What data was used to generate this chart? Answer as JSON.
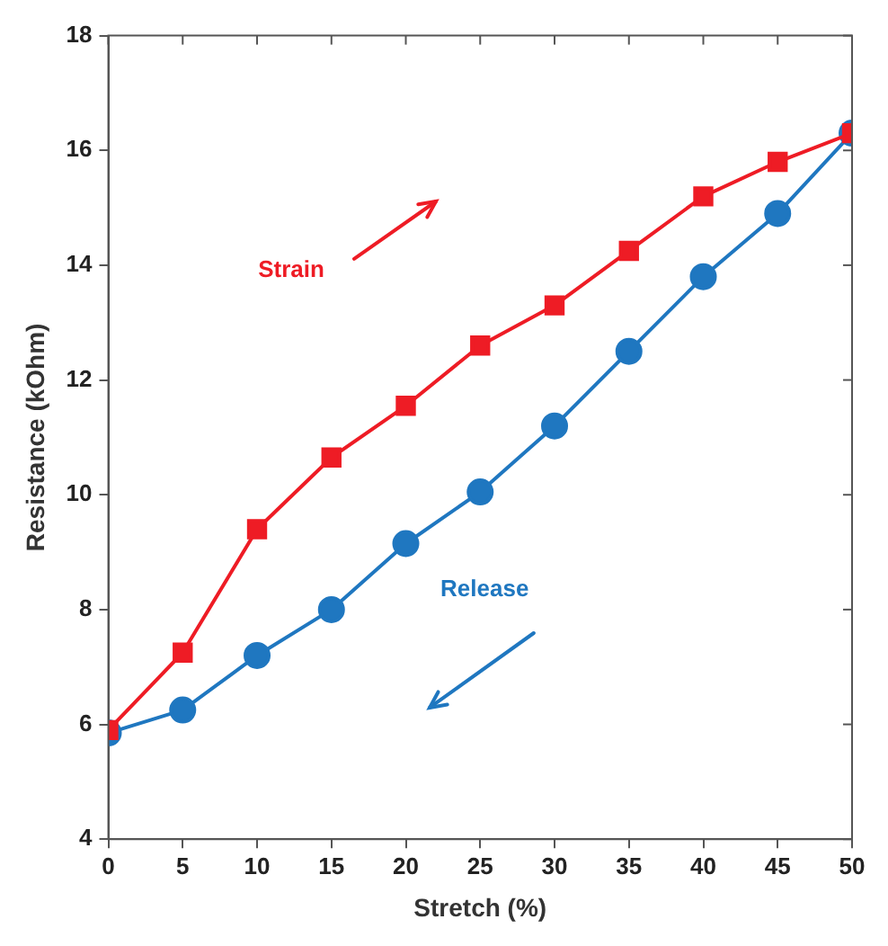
{
  "chart_data": {
    "type": "line",
    "xlabel": "Stretch (%)",
    "ylabel": "Resistance (kOhm)",
    "xlim": [
      0,
      50
    ],
    "xticks": [
      0,
      5,
      10,
      15,
      20,
      25,
      30,
      35,
      40,
      45,
      50
    ],
    "ylim": [
      4,
      18
    ],
    "yticks": [
      4,
      6,
      8,
      10,
      12,
      14,
      16,
      18
    ],
    "annotations": [
      "Strain",
      "Release"
    ],
    "series": [
      {
        "x": [
          0,
          5,
          10,
          15,
          20,
          25,
          30,
          35,
          40,
          45,
          50
        ],
        "values": [
          5.9,
          7.25,
          9.4,
          10.65,
          11.55,
          12.6,
          13.3,
          14.25,
          15.2,
          15.8,
          16.3
        ],
        "color": "#ee1c25",
        "marker": "square"
      },
      {
        "x": [
          0,
          5,
          10,
          15,
          20,
          25,
          30,
          35,
          40,
          45,
          50
        ],
        "values": [
          5.85,
          6.25,
          7.2,
          8.0,
          9.15,
          10.05,
          11.2,
          12.5,
          13.8,
          14.9,
          16.3
        ],
        "color": "#1f77c0",
        "marker": "circle"
      }
    ],
    "grid": false,
    "legend": false,
    "line_style": "solid"
  }
}
